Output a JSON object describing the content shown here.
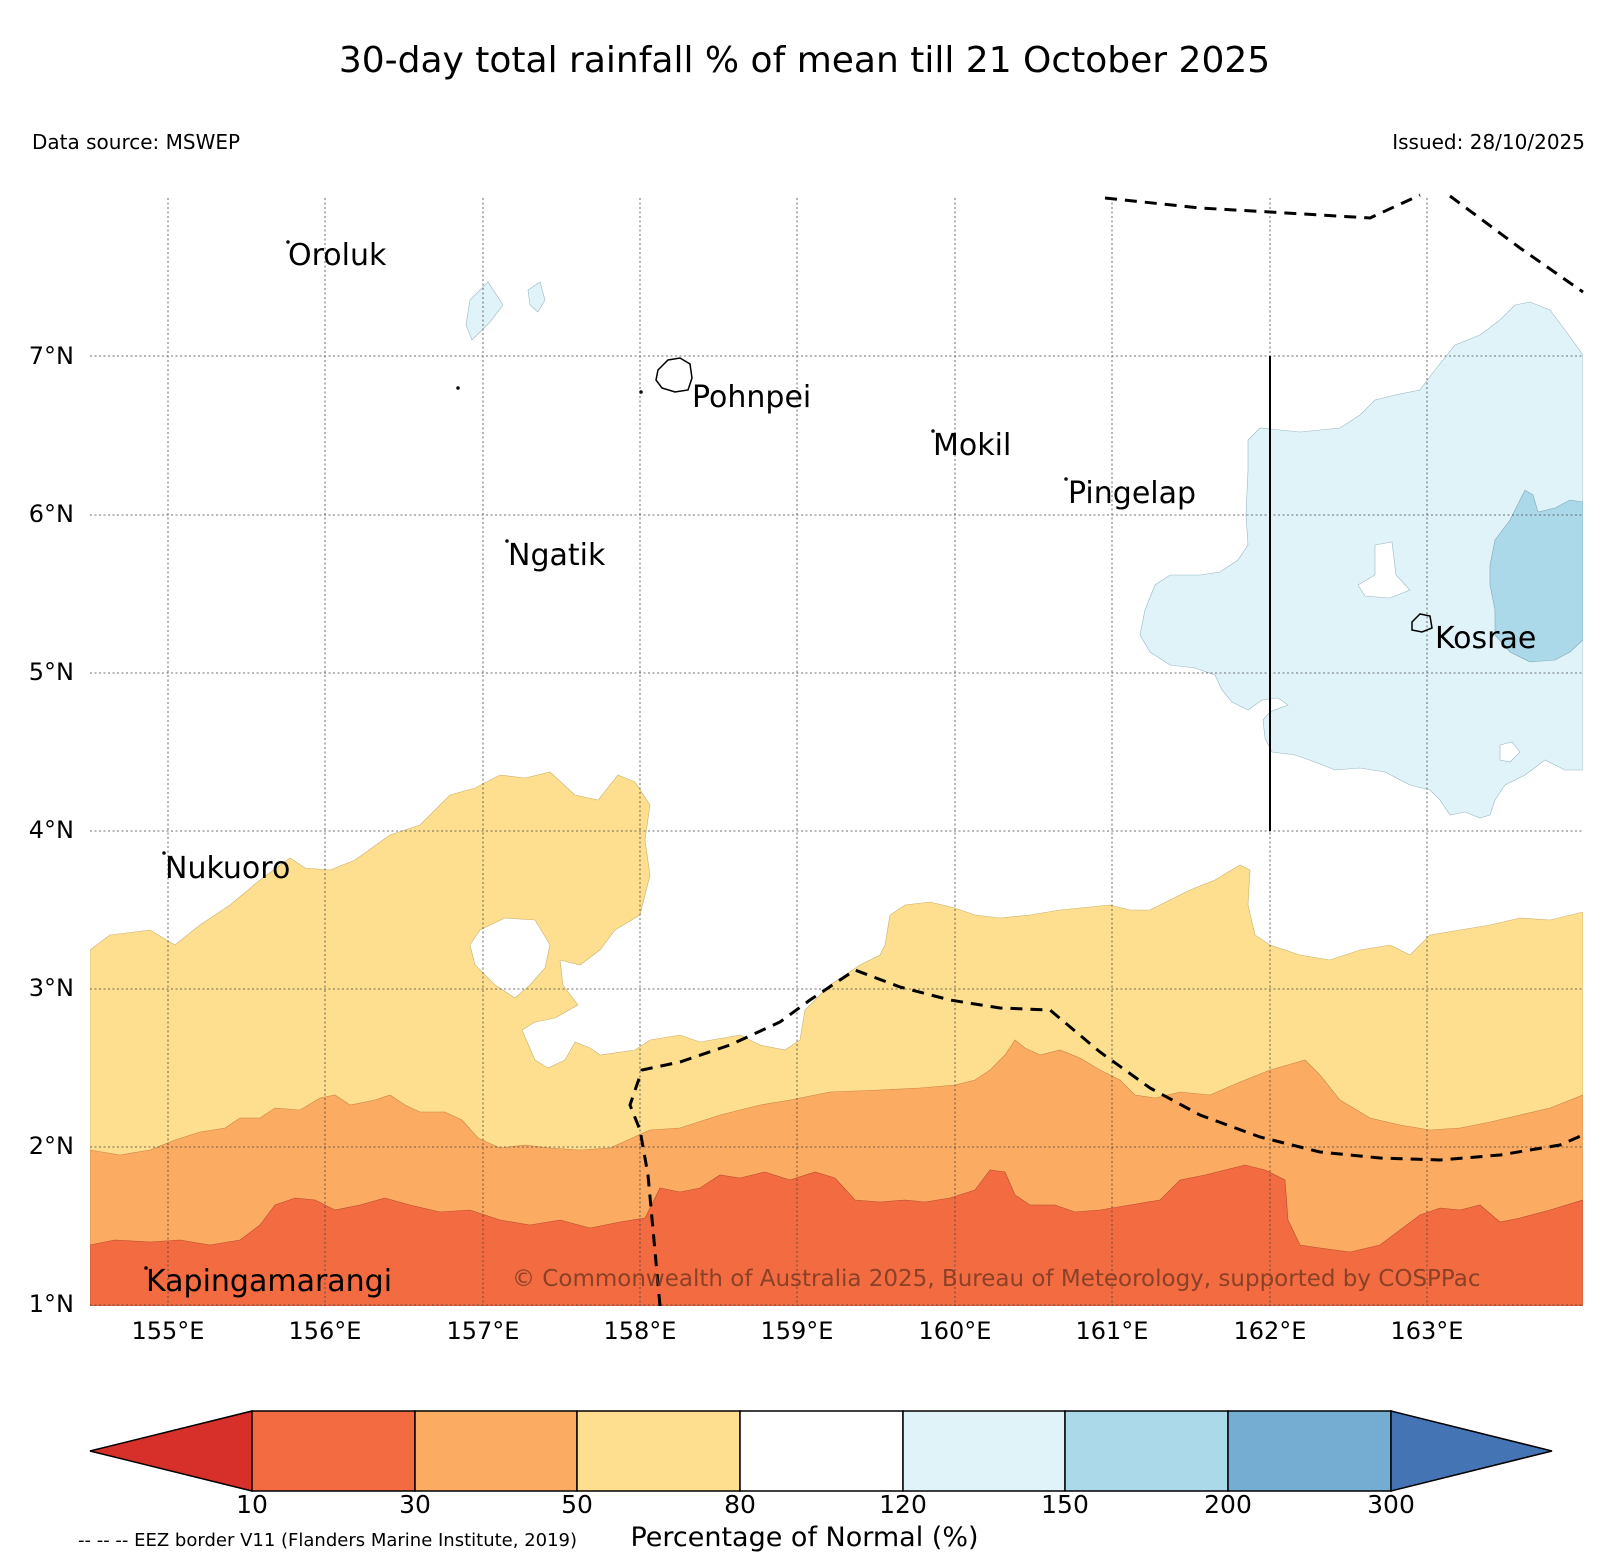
{
  "title": "30-day total rainfall % of mean till 21 October 2025",
  "data_source": "Data source: MSWEP",
  "issued": "Issued: 28/10/2025",
  "lat_labels": [
    "7°N",
    "6°N",
    "5°N",
    "4°N",
    "3°N",
    "2°N",
    "1°N"
  ],
  "lon_labels": [
    "155°E",
    "156°E",
    "157°E",
    "158°E",
    "159°E",
    "160°E",
    "161°E",
    "162°E",
    "163°E"
  ],
  "places": {
    "oroluk": "Oroluk",
    "pohnpei": "Pohnpei",
    "mokil": "Mokil",
    "pingelap": "Pingelap",
    "ngatik": "Ngatik",
    "kosrae": "Kosrae",
    "nukuoro": "Nukuoro",
    "kapingamarangi": "Kapingamarangi"
  },
  "copyright": "© Commonwealth of Australia 2025, Bureau of Meteorology, supported by COSPPac",
  "colorbar": {
    "ticks": [
      "10",
      "30",
      "50",
      "80",
      "120",
      "150",
      "200",
      "300"
    ],
    "label": "Percentage of Normal (%)",
    "colors": {
      "below_10": "#d7302a",
      "10_30": "#f26b41",
      "30_50": "#fbab62",
      "50_80": "#fedf8f",
      "80_120": "#ffffff",
      "120_150": "#e0f3f8",
      "150_200": "#abd9e9",
      "200_300": "#74add1",
      "above_300": "#4574b4"
    }
  },
  "eez_note": "-- -- -- EEZ border V11 (Flanders Marine Institute, 2019)"
}
